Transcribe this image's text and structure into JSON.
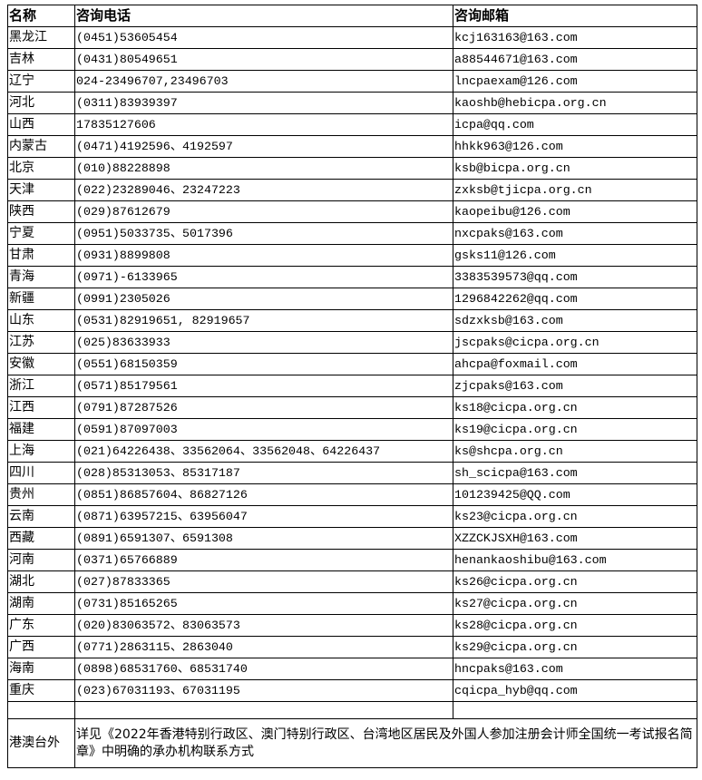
{
  "headers": {
    "name": "名称",
    "phone": "咨询电话",
    "email": "咨询邮箱"
  },
  "rows": [
    {
      "name": "黑龙江",
      "phone": "(0451)53605454",
      "email": "kcj163163@163.com"
    },
    {
      "name": "吉林",
      "phone": "(0431)80549651",
      "email": "a88544671@163.com"
    },
    {
      "name": "辽宁",
      "phone": "024-23496707,23496703",
      "email": "lncpaexam@126.com"
    },
    {
      "name": "河北",
      "phone": "(0311)83939397",
      "email": "kaoshb@hebicpa.org.cn"
    },
    {
      "name": "山西",
      "phone": "17835127606",
      "email": "icpa@qq.com"
    },
    {
      "name": "内蒙古",
      "phone": "(0471)4192596、4192597",
      "email": "hhkk963@126.com"
    },
    {
      "name": "北京",
      "phone": "(010)88228898",
      "email": "ksb@bicpa.org.cn"
    },
    {
      "name": "天津",
      "phone": "(022)23289046、23247223",
      "email": "zxksb@tjicpa.org.cn"
    },
    {
      "name": "陕西",
      "phone": "(029)87612679",
      "email": "kaopeibu@126.com"
    },
    {
      "name": "宁夏",
      "phone": "(0951)5033735、5017396",
      "email": "nxcpaks@163.com"
    },
    {
      "name": "甘肃",
      "phone": "(0931)8899808",
      "email": "gsks11@126.com"
    },
    {
      "name": "青海",
      "phone": "(0971)-6133965",
      "email": "3383539573@qq.com"
    },
    {
      "name": "新疆",
      "phone": "(0991)2305026",
      "email": "1296842262@qq.com"
    },
    {
      "name": "山东",
      "phone": "(0531)82919651, 82919657",
      "email": "sdzxksb@163.com"
    },
    {
      "name": "江苏",
      "phone": "(025)83633933",
      "email": "jscpaks@cicpa.org.cn"
    },
    {
      "name": "安徽",
      "phone": "(0551)68150359",
      "email": "ahcpa@foxmail.com"
    },
    {
      "name": "浙江",
      "phone": "(0571)85179561",
      "email": "zjcpaks@163.com"
    },
    {
      "name": "江西",
      "phone": "(0791)87287526",
      "email": "ks18@cicpa.org.cn"
    },
    {
      "name": "福建",
      "phone": "(0591)87097003",
      "email": "ks19@cicpa.org.cn"
    },
    {
      "name": "上海",
      "phone": "(021)64226438、33562064、33562048、64226437",
      "email": "ks@shcpa.org.cn"
    },
    {
      "name": "四川",
      "phone": "(028)85313053、85317187",
      "email": "sh_scicpa@163.com"
    },
    {
      "name": "贵州",
      "phone": "(0851)86857604、86827126",
      "email": "101239425@QQ.com"
    },
    {
      "name": "云南",
      "phone": "(0871)63957215、63956047",
      "email": "ks23@cicpa.org.cn"
    },
    {
      "name": "西藏",
      "phone": "(0891)6591307、6591308",
      "email": "XZZCKJSXH@163.com"
    },
    {
      "name": "河南",
      "phone": "(0371)65766889",
      "email": "henankaoshibu@163.com"
    },
    {
      "name": "湖北",
      "phone": "(027)87833365",
      "email": "ks26@cicpa.org.cn"
    },
    {
      "name": "湖南",
      "phone": "(0731)85165265",
      "email": "ks27@cicpa.org.cn"
    },
    {
      "name": "广东",
      "phone": "(020)83063572、83063573",
      "email": "ks28@cicpa.org.cn"
    },
    {
      "name": "广西",
      "phone": "(0771)2863115、2863040",
      "email": "ks29@cicpa.org.cn"
    },
    {
      "name": "海南",
      "phone": "(0898)68531760、68531740",
      "email": "hncpaks@163.com"
    },
    {
      "name": "重庆",
      "phone": "(023)67031193、67031195",
      "email": "cqicpa_hyb@qq.com"
    }
  ],
  "footer": {
    "name": "港澳台外",
    "note": "详见《2022年香港特别行政区、澳门特别行政区、台湾地区居民及外国人参加注册会计师全国统一考试报名简章》中明确的承办机构联系方式"
  }
}
